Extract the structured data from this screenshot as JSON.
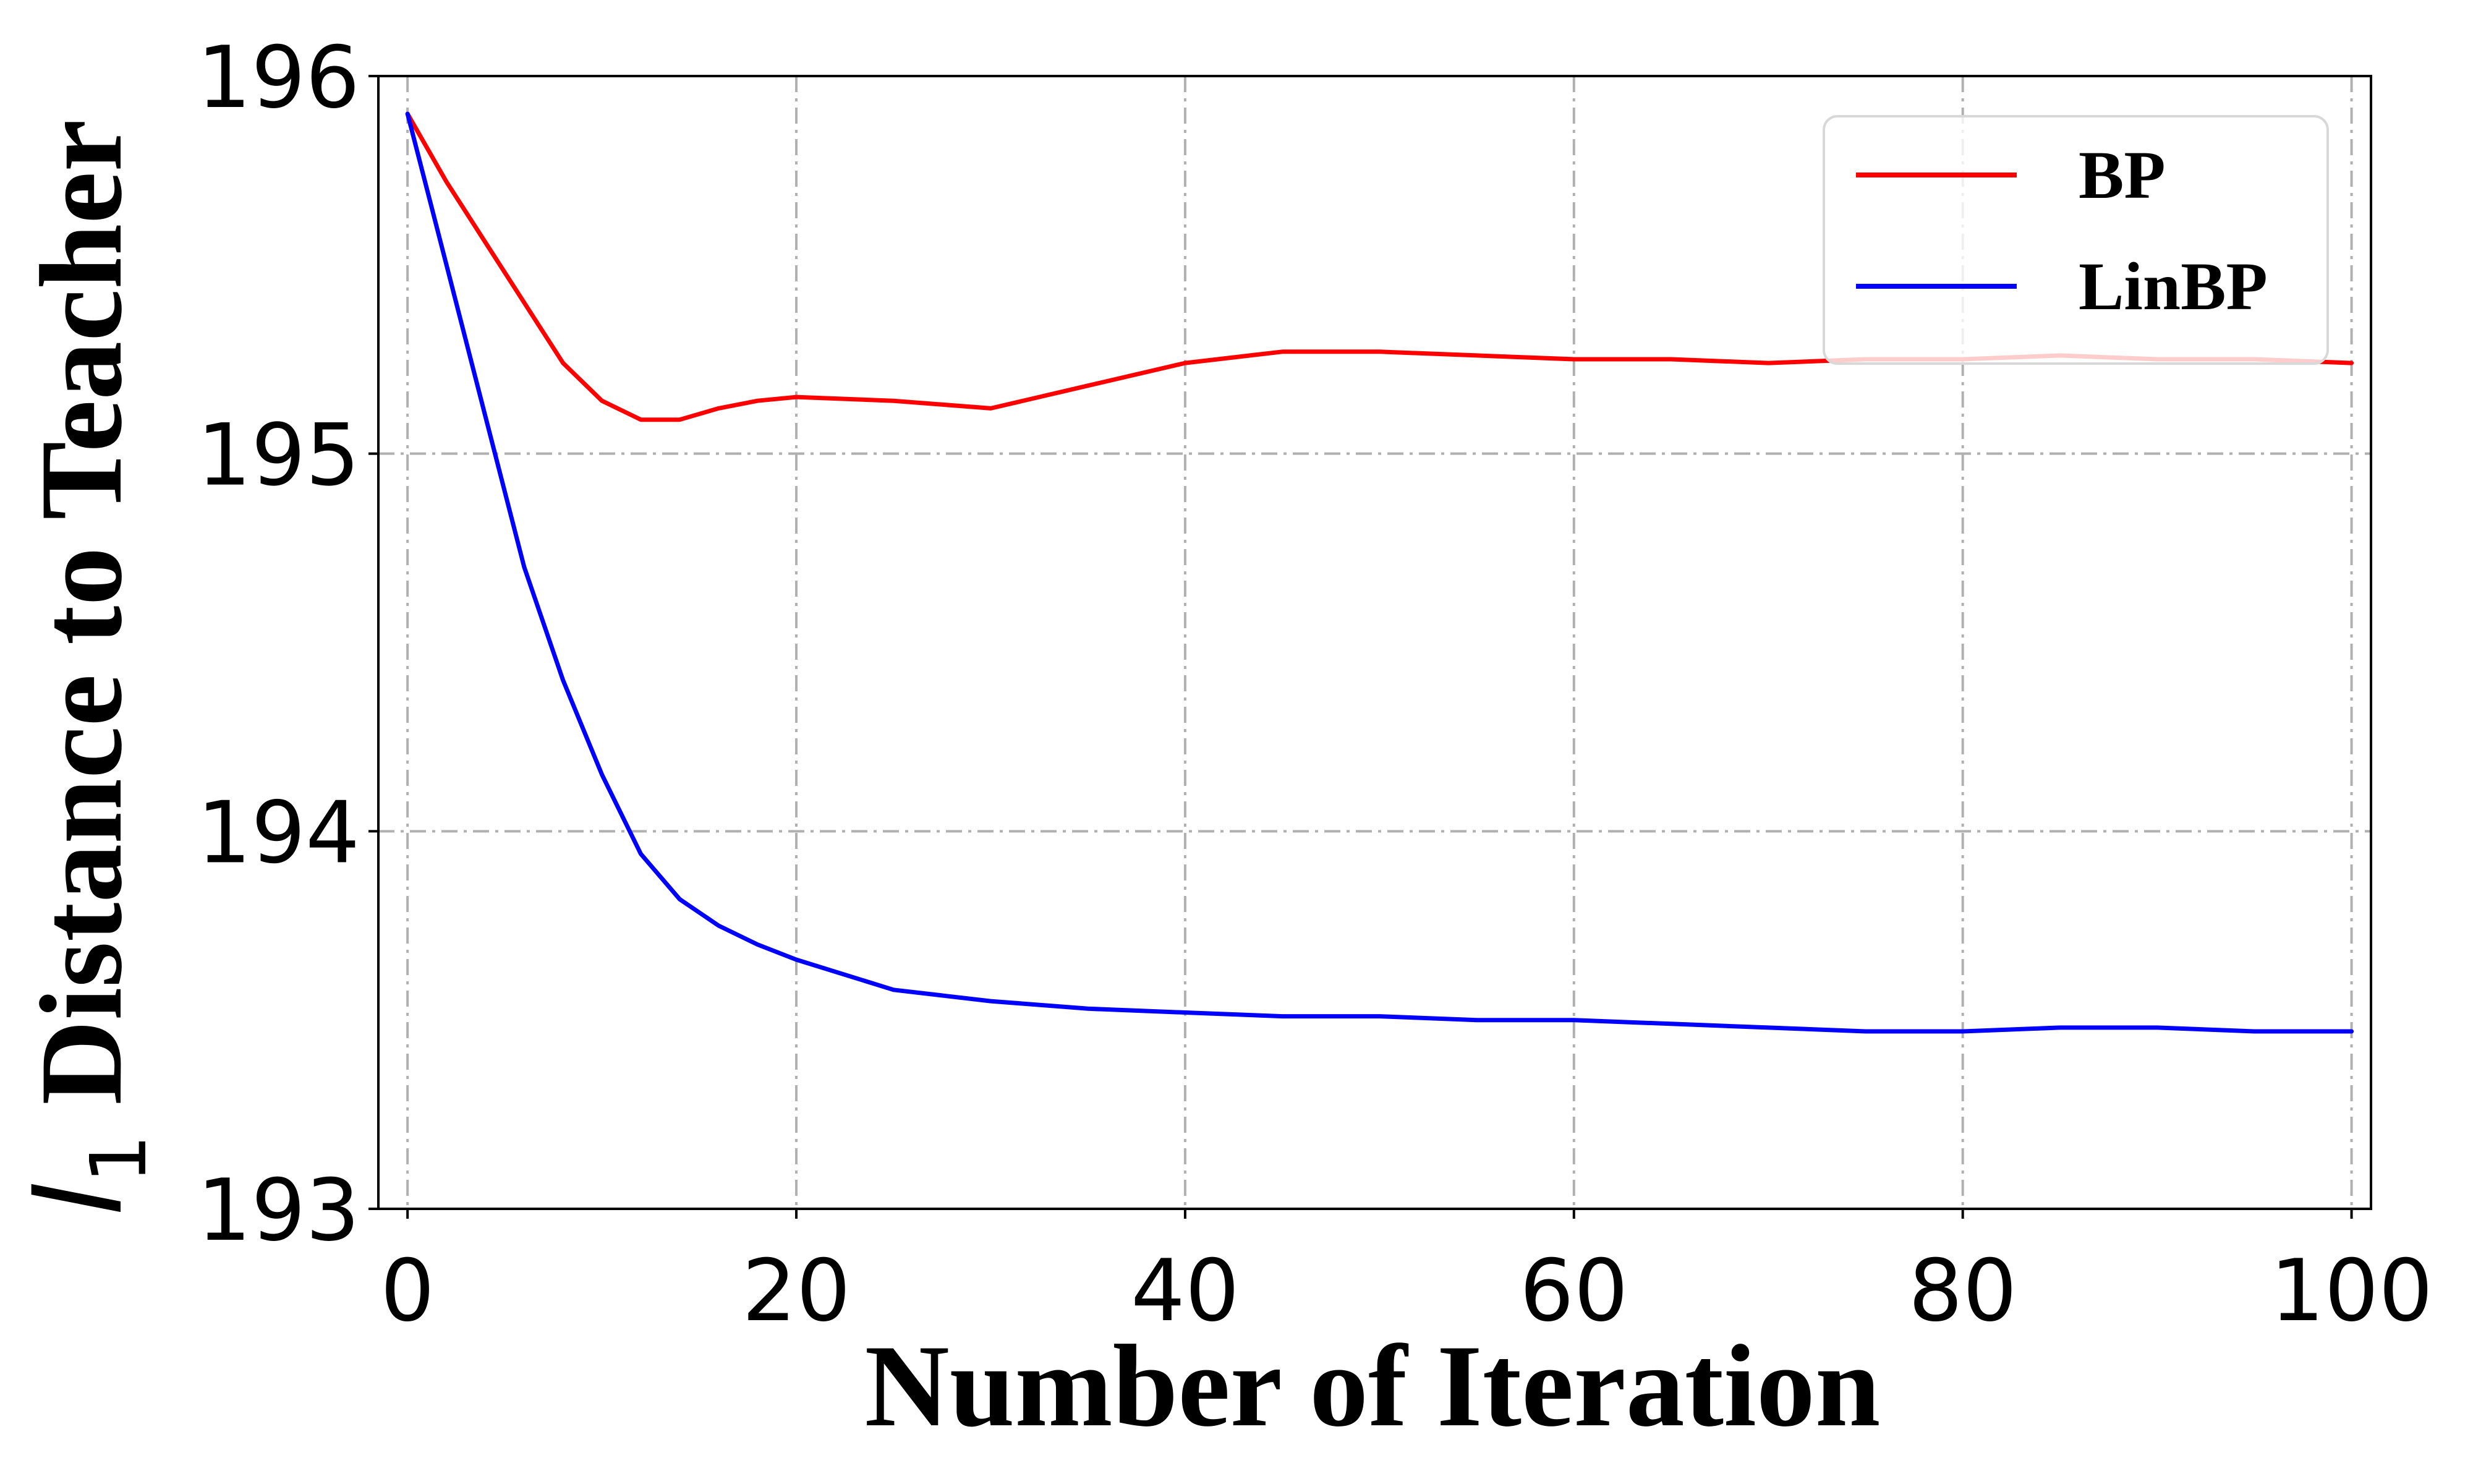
{
  "chart_data": {
    "type": "line",
    "xlabel": "Number of Iteration",
    "ylabel": {
      "italic_part": "l",
      "subscript": "1",
      "rest": " Distance to Teacher"
    },
    "xlim": [
      -1.5,
      101
    ],
    "ylim": [
      193,
      196
    ],
    "xticks": [
      0,
      20,
      40,
      60,
      80,
      100
    ],
    "xtick_labels": [
      "0",
      "20",
      "40",
      "60",
      "80",
      "100"
    ],
    "yticks": [
      193,
      194,
      195,
      196
    ],
    "ytick_labels": [
      "193",
      "194",
      "195",
      "196"
    ],
    "grid": true,
    "legend": {
      "position": "top-right"
    },
    "x": [
      0,
      2,
      4,
      6,
      8,
      10,
      12,
      14,
      16,
      18,
      20,
      25,
      30,
      35,
      40,
      45,
      50,
      55,
      60,
      65,
      70,
      75,
      80,
      85,
      90,
      95,
      100
    ],
    "series": [
      {
        "name": "BP",
        "color": "#ff0000",
        "values": [
          195.9,
          195.72,
          195.56,
          195.4,
          195.24,
          195.14,
          195.09,
          195.09,
          195.12,
          195.14,
          195.15,
          195.14,
          195.12,
          195.18,
          195.24,
          195.27,
          195.27,
          195.26,
          195.25,
          195.25,
          195.24,
          195.25,
          195.25,
          195.26,
          195.25,
          195.25,
          195.24
        ]
      },
      {
        "name": "LinBP",
        "color": "#0000ff",
        "values": [
          195.9,
          195.5,
          195.1,
          194.7,
          194.4,
          194.15,
          193.94,
          193.82,
          193.75,
          193.7,
          193.66,
          193.58,
          193.55,
          193.53,
          193.52,
          193.51,
          193.51,
          193.5,
          193.5,
          193.49,
          193.48,
          193.47,
          193.47,
          193.48,
          193.48,
          193.47,
          193.47
        ]
      }
    ]
  }
}
